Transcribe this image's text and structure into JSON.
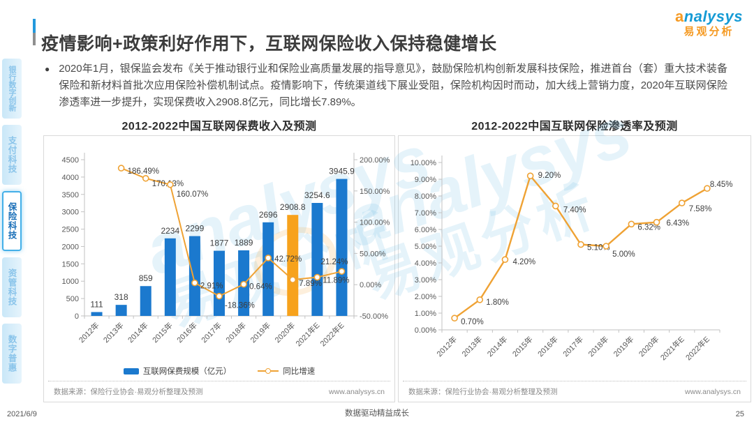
{
  "header": {
    "title": "疫情影响+政策利好作用下，互联网保险收入保持稳健增长",
    "logo_text": "analysys",
    "logo_subtext": "易观分析"
  },
  "sidebar": {
    "items": [
      {
        "label": "银行数字创新",
        "active": false
      },
      {
        "label": "支付科技",
        "active": false
      },
      {
        "label": "保险科技",
        "active": true
      },
      {
        "label": "资管科技",
        "active": false
      },
      {
        "label": "数字普惠",
        "active": false
      }
    ]
  },
  "bullet": {
    "marker": "●",
    "text": "2020年1月，银保监会发布《关于推动银行业和保险业高质量发展的指导意见》，鼓励保险机构创新发展科技保险，推进首台（套）重大技术装备保险和新材料首批次应用保险补偿机制试点。疫情影响下，传统渠道线下展业受阻，保险机构因时而动，加大线上营销力度，2020年互联网保险渗透率进一步提升，实现保费收入2908.8亿元，同比增长7.89%。"
  },
  "colors": {
    "bar_blue": "#1B79CE",
    "bar_highlight": "#F7A21C",
    "line_orange": "#EFA234",
    "axis": "#C2C2C2",
    "tick_text": "#595959",
    "label_text": "#3D3D3D"
  },
  "chart_data": [
    {
      "type": "bar",
      "title": "2012-2022中国互联网保费收入及预测",
      "categories": [
        "2012年",
        "2013年",
        "2014年",
        "2015年",
        "2016年",
        "2017年",
        "2018年",
        "2019年",
        "2020年",
        "2021年E",
        "2022年E"
      ],
      "series": [
        {
          "name": "互联网保费规模（亿元）",
          "type": "bar",
          "values": [
            111,
            318,
            859,
            2234,
            2299,
            1877,
            1889,
            2696,
            2908.8,
            3254.6,
            3945.9
          ],
          "value_labels": [
            "111",
            "318",
            "859",
            "2234",
            "2299",
            "1877",
            "1889",
            "2696",
            "2908.8",
            "3254.6",
            "3945.9"
          ],
          "highlight_index": 8
        },
        {
          "name": "同比增速",
          "type": "line",
          "axis": "right",
          "values": [
            null,
            186.49,
            170.13,
            160.07,
            2.91,
            -18.36,
            0.64,
            42.72,
            7.89,
            11.89,
            21.24
          ],
          "value_labels": [
            null,
            "186.49%",
            "170.13%",
            "160.07%",
            "2.91%",
            "-18.36%",
            "0.64%",
            "42.72%",
            "7.89%",
            "11.89%",
            "21.24%"
          ]
        }
      ],
      "left_axis": {
        "min": 0,
        "max": 4500,
        "step": 500
      },
      "right_axis": {
        "min": -50,
        "max": 200,
        "step": 50,
        "format": "percent"
      },
      "grid": false,
      "legend_position": "bottom"
    },
    {
      "type": "line",
      "title": "2012-2022中国互联网保险渗透率及预测",
      "categories": [
        "2012年",
        "2013年",
        "2014年",
        "2015年",
        "2016年",
        "2017年",
        "2018年",
        "2019年",
        "2020年",
        "2021年E",
        "2022年E"
      ],
      "series": [
        {
          "name": "互联网保险渗透率",
          "values": [
            0.7,
            1.8,
            4.2,
            9.2,
            7.4,
            5.1,
            5.0,
            6.32,
            6.43,
            7.58,
            8.45
          ],
          "value_labels": [
            "0.70%",
            "1.80%",
            "4.20%",
            "9.20%",
            "7.40%",
            "5.10%",
            "5.00%",
            "6.32%",
            "6.43%",
            "7.58%",
            "8.45%"
          ]
        }
      ],
      "y_axis": {
        "min": 0,
        "max": 10,
        "step": 1,
        "format": "percent"
      },
      "grid": false,
      "legend_position": "none"
    }
  ],
  "sources": {
    "label": "数据来源：保险行业协会·易观分析整理及预测",
    "site": "www.analysys.cn"
  },
  "footer": {
    "date": "2021/6/9",
    "slogan": "数据驱动精益成长",
    "page_number": "25"
  }
}
